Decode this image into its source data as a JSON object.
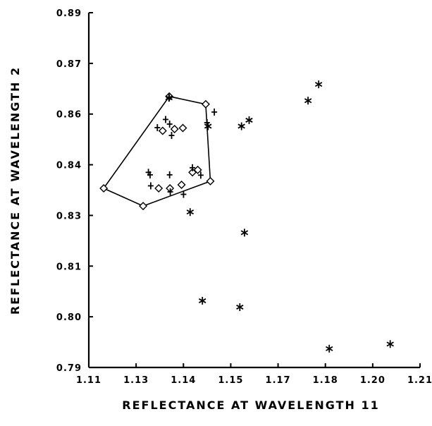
{
  "chart_data": {
    "type": "scatter",
    "title": "",
    "xlabel": "REFLECTANCE AT WAVELENGTH 11",
    "ylabel": "REFLECTANCE AT WAVELENGTH 2",
    "x_ticks": [
      "1.11",
      "1.13",
      "1.14",
      "1.15",
      "1.17",
      "1.18",
      "1.20",
      "1.21"
    ],
    "y_ticks": [
      "0.89",
      "0.87",
      "0.86",
      "0.84",
      "0.83",
      "0.81",
      "0.80",
      "0.79"
    ],
    "xlim": [
      1.11,
      1.21
    ],
    "ylim": [
      0.79,
      0.89
    ],
    "grid": false,
    "series": [
      {
        "marker": "diamond",
        "points": [
          [
            1.1145,
            0.8405
          ],
          [
            1.1264,
            0.8355
          ],
          [
            1.1343,
            0.8664
          ],
          [
            1.1453,
            0.8642
          ],
          [
            1.1467,
            0.8425
          ],
          [
            1.1311,
            0.8405
          ],
          [
            1.1345,
            0.8405
          ],
          [
            1.138,
            0.8415
          ],
          [
            1.1323,
            0.8567
          ],
          [
            1.1359,
            0.8572
          ],
          [
            1.1384,
            0.8575
          ],
          [
            1.1413,
            0.845
          ],
          [
            1.1429,
            0.8457
          ]
        ]
      },
      {
        "marker": "plus",
        "points": [
          [
            1.128,
            0.845
          ],
          [
            1.1285,
            0.8443
          ],
          [
            1.1287,
            0.8412
          ],
          [
            1.1307,
            0.8576
          ],
          [
            1.1332,
            0.8599
          ],
          [
            1.1343,
            0.866
          ],
          [
            1.1344,
            0.8586
          ],
          [
            1.135,
            0.8554
          ],
          [
            1.1344,
            0.8443
          ],
          [
            1.1346,
            0.8395
          ],
          [
            1.1386,
            0.8388
          ],
          [
            1.1413,
            0.8463
          ],
          [
            1.1438,
            0.8442
          ],
          [
            1.1457,
            0.859
          ],
          [
            1.1479,
            0.862
          ]
        ]
      },
      {
        "marker": "star",
        "points": [
          [
            1.1342,
            0.866
          ],
          [
            1.1406,
            0.8338
          ],
          [
            1.1443,
            0.8088
          ],
          [
            1.146,
            0.858
          ],
          [
            1.1556,
            0.807
          ],
          [
            1.1561,
            0.858
          ],
          [
            1.157,
            0.828
          ],
          [
            1.1584,
            0.8597
          ],
          [
            1.1762,
            0.8652
          ],
          [
            1.1794,
            0.8698
          ],
          [
            1.1826,
            0.7953
          ],
          [
            1.201,
            0.7966
          ]
        ]
      }
    ],
    "hull_polygon": [
      [
        1.1145,
        0.8405
      ],
      [
        1.1343,
        0.8664
      ],
      [
        1.1453,
        0.8642
      ],
      [
        1.1467,
        0.8425
      ],
      [
        1.1264,
        0.8355
      ]
    ]
  }
}
